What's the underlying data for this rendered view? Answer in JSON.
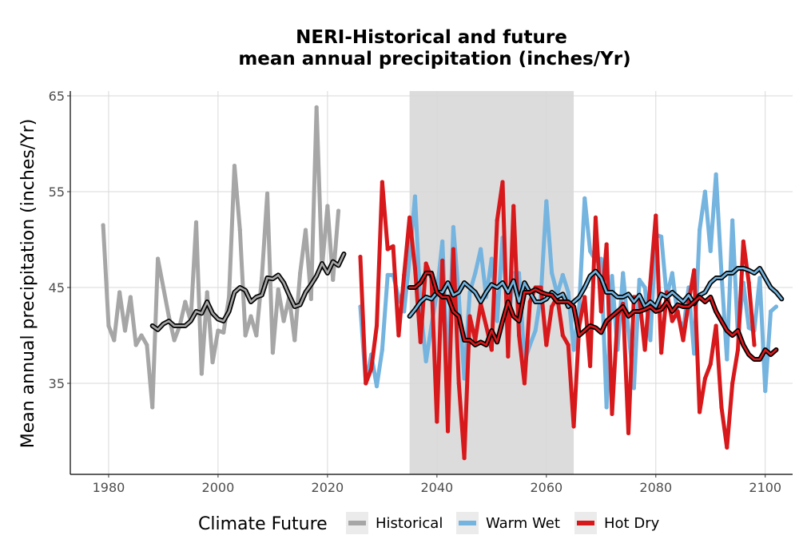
{
  "chart_data": {
    "type": "line",
    "title_line1": "NERI-Historical and future",
    "title_line2": "mean annual precipitation (inches/Yr)",
    "xlabel": "",
    "ylabel": "Mean annual precipitation (inches/Yr)",
    "xlim": [
      1973,
      2105
    ],
    "ylim": [
      25.5,
      65.5
    ],
    "xticks": [
      1980,
      2000,
      2020,
      2040,
      2060,
      2080,
      2100
    ],
    "yticks": [
      35,
      45,
      55,
      65
    ],
    "grid": true,
    "shaded_period": [
      2035,
      2065
    ],
    "colors": {
      "historical": "#a6a6a6",
      "warm_wet": "#74b4df",
      "hot_dry": "#d7191c",
      "moving_average": "#000000",
      "shade": "#dcdcdc"
    },
    "legend": {
      "title": "Climate Future",
      "position": "bottom",
      "items": [
        "Historical",
        "Warm Wet",
        "Hot Dry"
      ]
    },
    "series": [
      {
        "name": "Historical",
        "x_start": 1979,
        "values": [
          51.5,
          41,
          39.5,
          44.5,
          40.5,
          44,
          39,
          40,
          39,
          32.5,
          48,
          45,
          42,
          39.5,
          41,
          43.5,
          41.5,
          51.8,
          36,
          44.5,
          37.2,
          40.5,
          40.3,
          44,
          57.7,
          51,
          40,
          42,
          40,
          46,
          54.8,
          38.2,
          44.8,
          41.5,
          44,
          39.5,
          46.5,
          51,
          43.8,
          63.8,
          47,
          53.5,
          45.8,
          53
        ]
      },
      {
        "name": "Warm Wet",
        "x_start": 2026,
        "values": [
          43,
          35,
          38,
          34.7,
          38.5,
          46.3,
          46.3,
          44,
          42.5,
          48,
          54.5,
          43,
          37.3,
          41,
          44.5,
          49.8,
          35.5,
          51.3,
          44,
          35.5,
          44.5,
          46.5,
          49,
          44,
          48,
          41.5,
          50.2,
          41,
          46.5,
          46.5,
          37.3,
          39,
          40.5,
          44.2,
          54,
          46.5,
          44.3,
          46.3,
          44.5,
          38.5,
          43,
          54.3,
          48.8,
          47.8,
          48,
          32.5,
          46.2,
          38.5,
          46.5,
          40.5,
          34.5,
          45.8,
          45,
          39.5,
          50.5,
          50.3,
          44,
          46.5,
          42,
          40.5,
          45,
          38.1,
          51,
          55,
          48.8,
          56.8,
          46.5,
          37.5,
          52,
          40,
          45.5,
          40.8,
          40.5,
          46,
          34.2,
          42.5,
          43
        ]
      },
      {
        "name": "Hot Dry",
        "x_start": 2026,
        "values": [
          48.2,
          35,
          36.5,
          41,
          56,
          49,
          49.3,
          40,
          46.3,
          52.3,
          47,
          39.3,
          47.5,
          46,
          31,
          47.8,
          30,
          49,
          35,
          27.2,
          42,
          39.5,
          43.3,
          41,
          38.5,
          52,
          56,
          37.8,
          53.5,
          40,
          35,
          43.5,
          45,
          45,
          39,
          43,
          44,
          40,
          39,
          30.5,
          41,
          44,
          36.8,
          52.3,
          42.5,
          49.5,
          31.8,
          42,
          43.3,
          29.8,
          44,
          44,
          38.5,
          45.5,
          52.5,
          38.2,
          44.5,
          41.5,
          42.5,
          39.5,
          43.5,
          46.8,
          32,
          35.5,
          37,
          41,
          32.5,
          28.3,
          35,
          38.5,
          49.8,
          45.5,
          39
        ]
      },
      {
        "name": "Historical moving average",
        "x_start": 1988,
        "values": [
          41,
          40.6,
          41.2,
          41.5,
          41,
          41,
          41,
          41.5,
          42.5,
          42.3,
          43.5,
          42.3,
          41.7,
          41.5,
          42.5,
          44.5,
          45,
          44.7,
          43.5,
          44,
          44.2,
          46,
          45.9,
          46.3,
          45.5,
          44.2,
          43,
          43.2,
          44.5,
          45.3,
          46.2,
          47.5,
          46.5,
          47.7,
          47.3,
          48.5
        ]
      },
      {
        "name": "Warm Wet moving average",
        "x_start": 2035,
        "values": [
          42,
          42.7,
          43.5,
          44,
          43.8,
          44.5,
          44.5,
          45.5,
          44.2,
          44.5,
          45.5,
          45,
          44.5,
          43.5,
          44.5,
          45.3,
          45,
          45.5,
          44.5,
          45.7,
          43.5,
          45.5,
          44.5,
          43.5,
          43.5,
          43.8,
          44.5,
          44,
          44.3,
          43,
          43.5,
          44,
          45,
          46.2,
          46.7,
          46,
          44.5,
          44.5,
          44,
          44,
          44.3,
          43.5,
          44.2,
          43,
          43.5,
          43,
          44.3,
          44,
          44.5,
          44,
          43.5,
          44.2,
          43.3,
          44.2,
          44.5,
          45.5,
          46,
          46,
          46.5,
          46.5,
          47,
          47,
          46.8,
          46.5,
          47,
          46,
          45,
          44.5,
          43.8
        ]
      },
      {
        "name": "Hot Dry moving average",
        "x_start": 2035,
        "values": [
          45,
          45,
          45.5,
          46.5,
          46.5,
          44.5,
          44,
          44,
          42.5,
          42,
          39.5,
          39.5,
          39,
          39.3,
          39,
          40.5,
          39.3,
          41.5,
          43.5,
          42,
          41.5,
          44.5,
          44.5,
          44.8,
          44.5,
          44.3,
          44.2,
          43.5,
          43.5,
          43.5,
          43,
          40,
          40.5,
          41,
          40.8,
          40.3,
          41.5,
          42,
          42.5,
          43,
          42,
          42.5,
          42.5,
          42.7,
          43,
          42.5,
          42.7,
          43.5,
          42.5,
          43.2,
          43,
          43,
          43.5,
          44,
          43.5,
          44,
          42.5,
          41.5,
          40.5,
          40,
          40.5,
          39,
          38,
          37.5,
          37.5,
          38.5,
          38,
          38.5
        ]
      }
    ]
  }
}
